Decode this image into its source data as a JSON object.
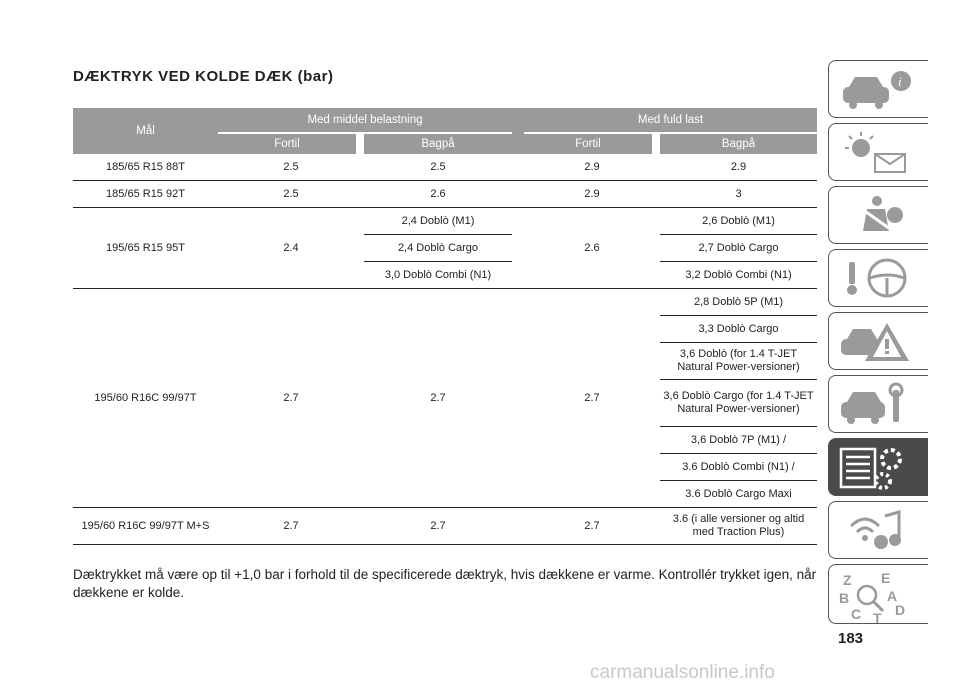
{
  "title": "DÆKTRYK VED KOLDE DÆK (bar)",
  "table": {
    "col_maal": "Mål",
    "group_middel": "Med middel belastning",
    "group_fuld": "Med fuld last",
    "sub_fortil": "Fortil",
    "sub_bagpaa": "Bagpå",
    "rows": [
      {
        "maal": "185/65 R15 88T",
        "m_fortil": "2.5",
        "m_bagpaa": "2.5",
        "f_fortil": "2.9",
        "f_bagpaa": "2.9"
      },
      {
        "maal": "185/65 R15 92T",
        "m_fortil": "2.5",
        "m_bagpaa": "2.6",
        "f_fortil": "2.9",
        "f_bagpaa": "3"
      },
      {
        "maal": "195/65 R15 95T",
        "m_fortil": "2.4",
        "m_bagpaa": [
          "2,4 Doblò (M1)",
          "2,4 Doblò Cargo",
          "3,0 Doblò Combi (N1)"
        ],
        "f_fortil": "2.6",
        "f_bagpaa": [
          "2,6 Doblò (M1)",
          "2,7 Doblò Cargo",
          "3,2 Doblò Combi (N1)"
        ]
      },
      {
        "maal": "195/60 R16C 99/97T",
        "m_fortil": "2.7",
        "m_bagpaa": "2.7",
        "f_fortil": "2.7",
        "f_bagpaa": [
          "2,8 Doblò 5P (M1)",
          "3,3 Doblò Cargo",
          "3,6 Doblò (for 1.4 T-JET Natural Power-versioner)",
          "3,6 Doblò Cargo (for 1.4 T-JET Natural Power-versioner)",
          "3,6 Doblò 7P (M1) /",
          "3.6 Doblò Combi (N1) /",
          "3.6 Doblò Cargo Maxi"
        ]
      },
      {
        "maal": "195/60 R16C 99/97T M+S",
        "m_fortil": "2.7",
        "m_bagpaa": "2.7",
        "f_fortil": "2.7",
        "f_bagpaa": "3.6 (i alle versioner og altid med Traction Plus)"
      }
    ]
  },
  "note": "Dæktrykket må være op til +1,0 bar i forhold til de specificerede dæktryk, hvis dækkene er varme. Kontrollér trykket igen, når dækkene er kolde.",
  "page_number": "183",
  "watermark": "carmanualsonline.info",
  "sidebar": {
    "tabs": [
      "car-info-icon",
      "warning-lights-icon",
      "safety-icon",
      "steering-wheel-icon",
      "emergency-icon",
      "maintenance-icon",
      "specs-icon",
      "multimedia-icon",
      "index-icon"
    ],
    "active_tab": "specs-icon",
    "index_letters": [
      "Z",
      "E",
      "B",
      "A",
      "C",
      "D",
      "T"
    ]
  },
  "colors": {
    "header_bg": "#9a9a9a",
    "active_tab": "#4a4a4a",
    "text": "#222222"
  }
}
